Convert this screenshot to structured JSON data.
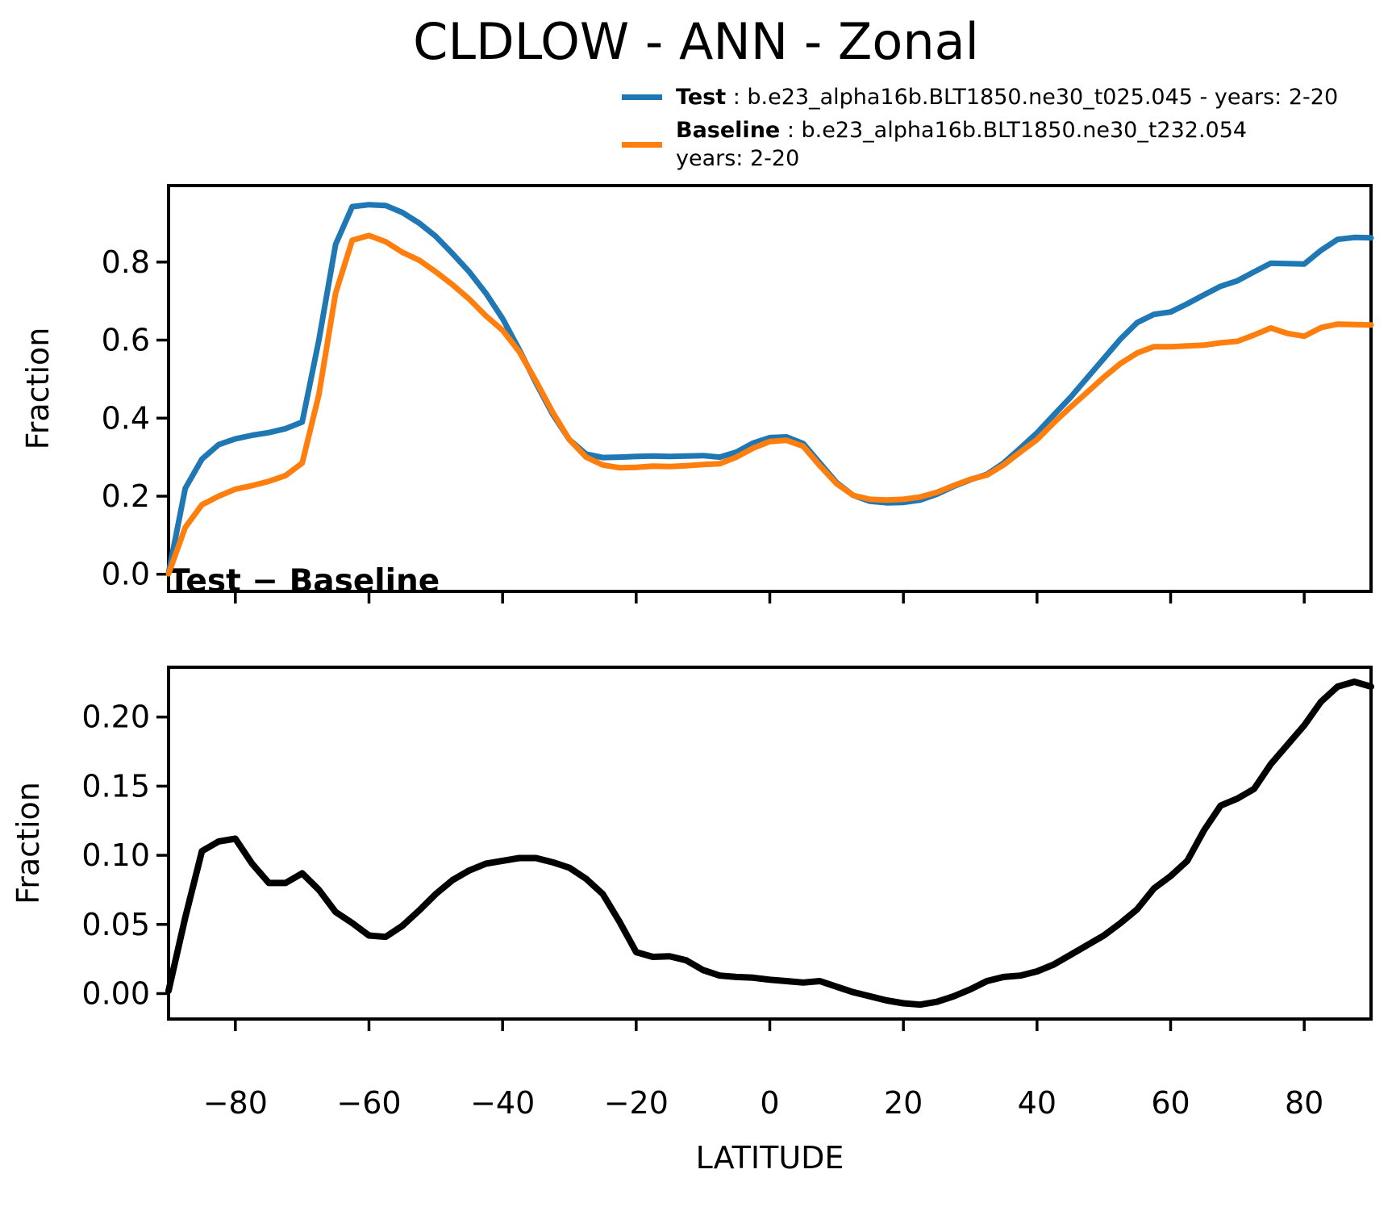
{
  "title": "CLDLOW - ANN - Zonal",
  "subtitle": "Test − Baseline",
  "legend": [
    {
      "label": "Test",
      "desc": " : b.e23_alpha16b.BLT1850.ne30_t025.045 - years: 2-20",
      "desc2": "",
      "color": "#1f77b4"
    },
    {
      "label": "Baseline",
      "desc": " : b.e23_alpha16b.BLT1850.ne30_t232.054",
      "desc2": "years: 2-20",
      "color": "#ff7f0e"
    }
  ],
  "chart_data": [
    {
      "type": "line",
      "title": "CLDLOW - ANN - Zonal",
      "xlabel": "LATITUDE",
      "ylabel": "Fraction",
      "xlim": [
        -90,
        90
      ],
      "ylim": [
        -0.044,
        0.996
      ],
      "grid": false,
      "legend_position": "upper right, outside axes",
      "xticks": [
        -80,
        -60,
        -40,
        -20,
        0,
        20,
        40,
        60,
        80
      ],
      "xtick_labels": [
        "−80",
        "−60",
        "−40",
        "−20",
        "0",
        "20",
        "40",
        "60",
        "80"
      ],
      "yticks": [
        0.0,
        0.2,
        0.4,
        0.6,
        0.8
      ],
      "ytick_labels": [
        "0.0",
        "0.2",
        "0.4",
        "0.6",
        "0.8"
      ],
      "x": [
        -90,
        -87.5,
        -85,
        -82.5,
        -80,
        -77.5,
        -75,
        -72.5,
        -70,
        -67.5,
        -65,
        -62.5,
        -60,
        -57.5,
        -55,
        -52.5,
        -50,
        -47.5,
        -45,
        -42.5,
        -40,
        -37.5,
        -35,
        -32.5,
        -30,
        -27.5,
        -25,
        -22.5,
        -20,
        -17.5,
        -15,
        -12.5,
        -10,
        -7.5,
        -5,
        -2.5,
        0,
        2.5,
        5,
        7.5,
        10,
        12.5,
        15,
        17.5,
        20,
        22.5,
        25,
        27.5,
        30,
        32.5,
        35,
        37.5,
        40,
        42.5,
        45,
        47.5,
        50,
        52.5,
        55,
        57.5,
        60,
        62.5,
        65,
        67.5,
        70,
        72.5,
        75,
        77.5,
        80,
        82.5,
        85,
        87.5,
        90
      ],
      "series": [
        {
          "name": "Test : b.e23_alpha16b.BLT1850.ne30_t025.045 - years: 2-20",
          "color": "#1f77b4",
          "values": [
            0.003,
            0.22,
            0.295,
            0.332,
            0.347,
            0.356,
            0.363,
            0.373,
            0.39,
            0.6,
            0.845,
            0.942,
            0.947,
            0.945,
            0.927,
            0.9,
            0.866,
            0.822,
            0.775,
            0.72,
            0.655,
            0.575,
            0.49,
            0.41,
            0.345,
            0.308,
            0.299,
            0.3,
            0.302,
            0.303,
            0.302,
            0.303,
            0.304,
            0.3,
            0.313,
            0.336,
            0.35,
            0.352,
            0.335,
            0.285,
            0.235,
            0.202,
            0.187,
            0.183,
            0.184,
            0.19,
            0.205,
            0.225,
            0.242,
            0.256,
            0.285,
            0.323,
            0.362,
            0.408,
            0.453,
            0.503,
            0.553,
            0.603,
            0.645,
            0.666,
            0.672,
            0.693,
            0.716,
            0.738,
            0.752,
            0.775,
            0.797,
            0.796,
            0.795,
            0.83,
            0.858,
            0.863,
            0.862
          ]
        },
        {
          "name": "Baseline : b.e23_alpha16b.BLT1850.ne30_t232.054 years: 2-20",
          "color": "#ff7f0e",
          "values": [
            0.001,
            0.12,
            0.178,
            0.2,
            0.218,
            0.227,
            0.238,
            0.253,
            0.285,
            0.46,
            0.72,
            0.856,
            0.868,
            0.852,
            0.825,
            0.805,
            0.775,
            0.742,
            0.705,
            0.662,
            0.625,
            0.57,
            0.495,
            0.415,
            0.345,
            0.3,
            0.28,
            0.273,
            0.274,
            0.277,
            0.276,
            0.278,
            0.281,
            0.283,
            0.3,
            0.323,
            0.34,
            0.343,
            0.328,
            0.278,
            0.232,
            0.202,
            0.192,
            0.19,
            0.192,
            0.198,
            0.21,
            0.227,
            0.243,
            0.254,
            0.28,
            0.313,
            0.345,
            0.388,
            0.428,
            0.466,
            0.505,
            0.54,
            0.567,
            0.583,
            0.583,
            0.585,
            0.587,
            0.593,
            0.597,
            0.613,
            0.631,
            0.617,
            0.61,
            0.632,
            0.641,
            0.64,
            0.639
          ]
        }
      ]
    },
    {
      "type": "line",
      "title": "Test − Baseline",
      "xlabel": "LATITUDE",
      "ylabel": "Fraction",
      "xlim": [
        -90,
        90
      ],
      "ylim": [
        -0.0184,
        0.236
      ],
      "grid": false,
      "xticks": [
        -80,
        -60,
        -40,
        -20,
        0,
        20,
        40,
        60,
        80
      ],
      "xtick_labels": [
        "−80",
        "−60",
        "−40",
        "−20",
        "0",
        "20",
        "40",
        "60",
        "80"
      ],
      "yticks": [
        0.0,
        0.05,
        0.1,
        0.15,
        0.2
      ],
      "ytick_labels": [
        "0.00",
        "0.05",
        "0.10",
        "0.15",
        "0.20"
      ],
      "x": [
        -90,
        -87.5,
        -85,
        -82.5,
        -80,
        -77.5,
        -75,
        -72.5,
        -70,
        -67.5,
        -65,
        -62.5,
        -60,
        -57.5,
        -55,
        -52.5,
        -50,
        -47.5,
        -45,
        -42.5,
        -40,
        -37.5,
        -35,
        -32.5,
        -30,
        -27.5,
        -25,
        -22.5,
        -20,
        -17.5,
        -15,
        -12.5,
        -10,
        -7.5,
        -5,
        -2.5,
        0,
        2.5,
        5,
        7.5,
        10,
        12.5,
        15,
        17.5,
        20,
        22.5,
        25,
        27.5,
        30,
        32.5,
        35,
        37.5,
        40,
        42.5,
        45,
        47.5,
        50,
        52.5,
        55,
        57.5,
        60,
        62.5,
        65,
        67.5,
        70,
        72.5,
        75,
        77.5,
        80,
        82.5,
        85,
        87.5,
        90
      ],
      "series": [
        {
          "name": "Test − Baseline",
          "color": "#000000",
          "values": [
            0.002,
            0.055,
            0.103,
            0.11,
            0.112,
            0.094,
            0.08,
            0.08,
            0.087,
            0.075,
            0.059,
            0.051,
            0.042,
            0.041,
            0.049,
            0.06,
            0.072,
            0.082,
            0.089,
            0.094,
            0.096,
            0.098,
            0.098,
            0.095,
            0.091,
            0.083,
            0.072,
            0.052,
            0.03,
            0.0265,
            0.027,
            0.024,
            0.017,
            0.013,
            0.012,
            0.0115,
            0.01,
            0.009,
            0.008,
            0.009,
            0.005,
            0.001,
            -0.002,
            -0.005,
            -0.007,
            -0.008,
            -0.006,
            -0.002,
            0.003,
            0.009,
            0.012,
            0.013,
            0.016,
            0.021,
            0.028,
            0.035,
            0.042,
            0.051,
            0.061,
            0.076,
            0.085,
            0.096,
            0.118,
            0.136,
            0.141,
            0.148,
            0.166,
            0.18,
            0.194,
            0.211,
            0.222,
            0.2255,
            0.222
          ]
        }
      ]
    }
  ]
}
